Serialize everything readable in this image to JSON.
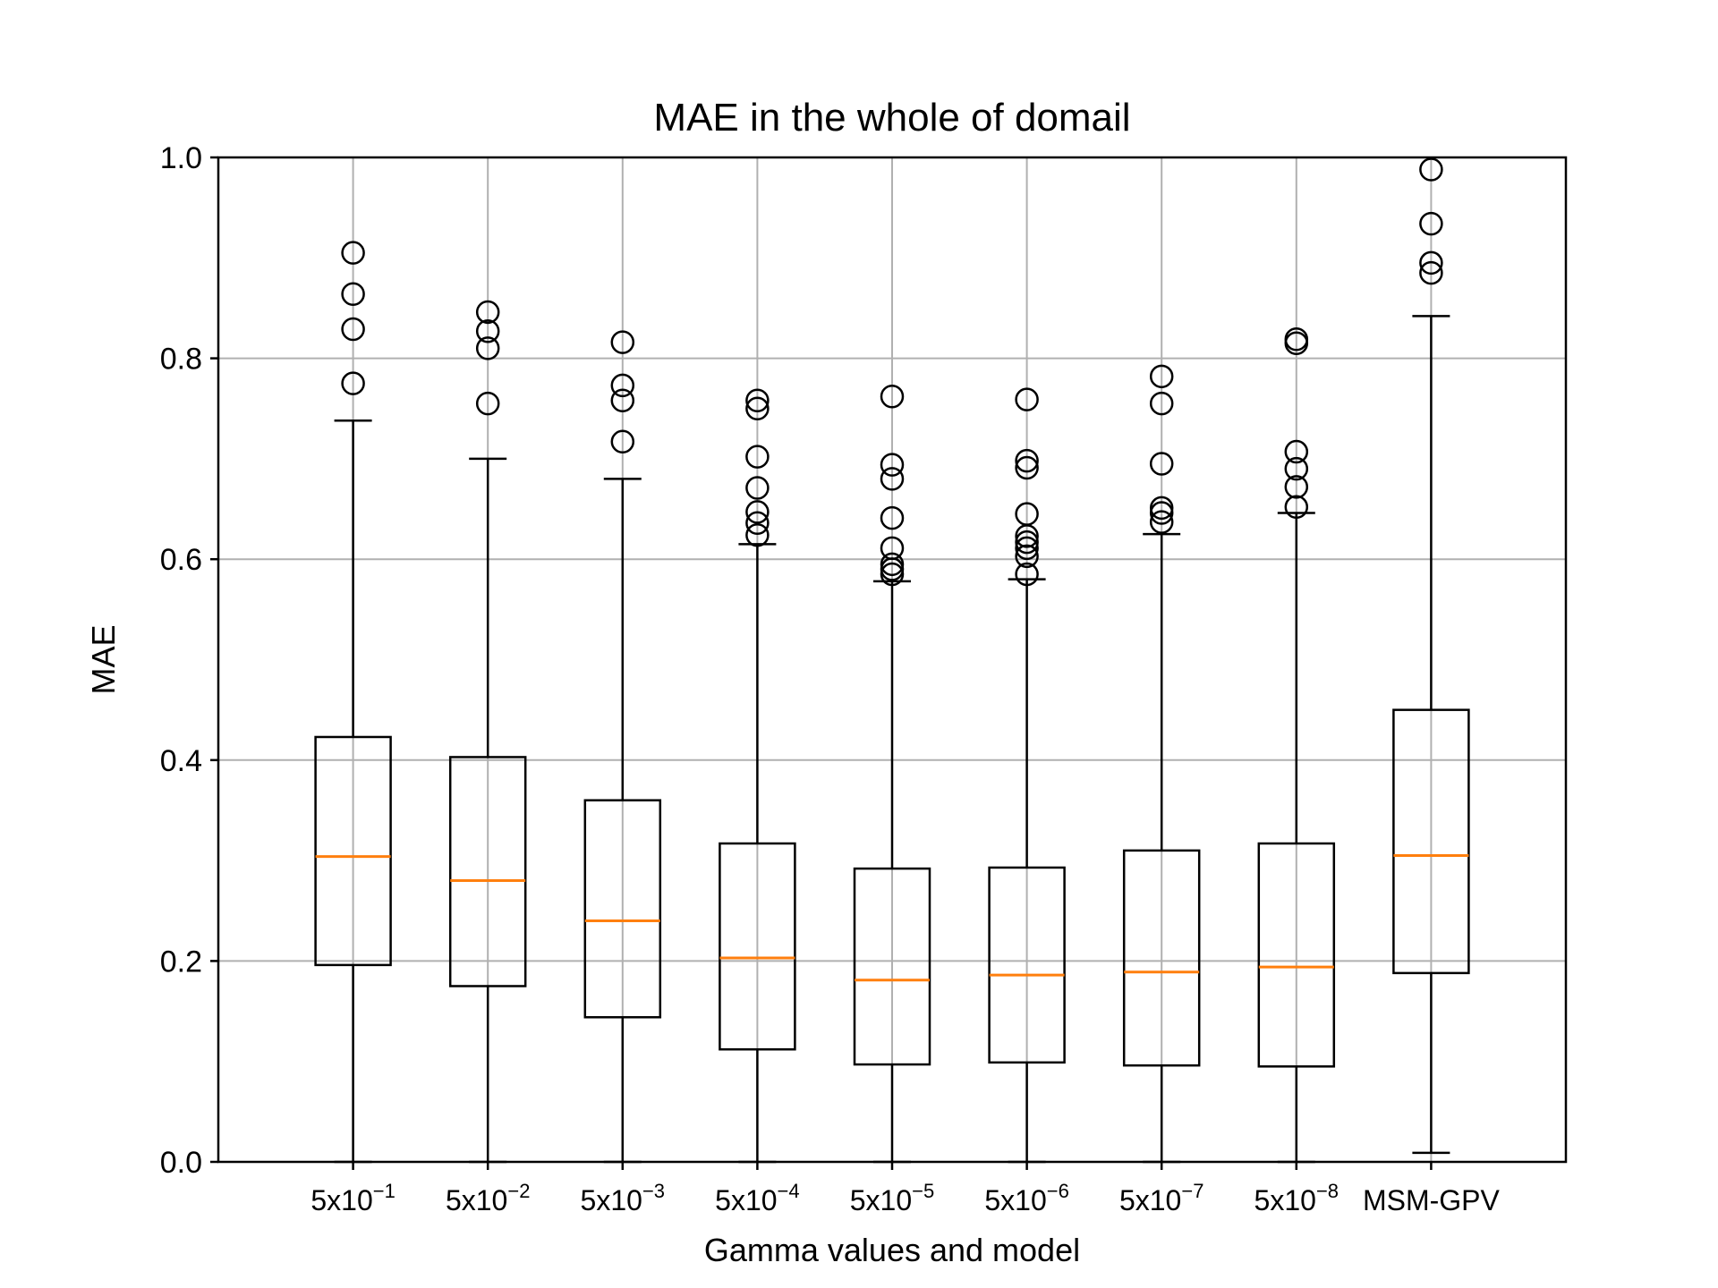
{
  "chart_data": {
    "type": "box",
    "title": "MAE in the whole of domail",
    "xlabel": "Gamma values and model",
    "ylabel": "MAE",
    "ylim": [
      0.0,
      1.0
    ],
    "yticks": [
      "0.0",
      "0.2",
      "0.4",
      "0.6",
      "0.8",
      "1.0"
    ],
    "grid": true,
    "colors": {
      "box": "#000000",
      "median": "#ff7f0e",
      "grid": "#b0b0b0"
    },
    "categories": [
      {
        "base": "5x10",
        "exp": "−1"
      },
      {
        "base": "5x10",
        "exp": "−2"
      },
      {
        "base": "5x10",
        "exp": "−3"
      },
      {
        "base": "5x10",
        "exp": "−4"
      },
      {
        "base": "5x10",
        "exp": "−5"
      },
      {
        "base": "5x10",
        "exp": "−6"
      },
      {
        "base": "5x10",
        "exp": "−7"
      },
      {
        "base": "5x10",
        "exp": "−8"
      },
      {
        "base": "MSM-GPV",
        "exp": ""
      }
    ],
    "boxes": [
      {
        "whisker_low": 0.0,
        "q1": 0.196,
        "median": 0.304,
        "q3": 0.423,
        "whisker_high": 0.738,
        "outliers": [
          0.775,
          0.829,
          0.864,
          0.905
        ]
      },
      {
        "whisker_low": 0.0,
        "q1": 0.175,
        "median": 0.28,
        "q3": 0.403,
        "whisker_high": 0.7,
        "outliers": [
          0.755,
          0.81,
          0.827,
          0.846
        ]
      },
      {
        "whisker_low": 0.0,
        "q1": 0.144,
        "median": 0.24,
        "q3": 0.36,
        "whisker_high": 0.68,
        "outliers": [
          0.717,
          0.758,
          0.773,
          0.816
        ]
      },
      {
        "whisker_low": 0.0,
        "q1": 0.112,
        "median": 0.203,
        "q3": 0.317,
        "whisker_high": 0.615,
        "outliers": [
          0.624,
          0.636,
          0.647,
          0.671,
          0.702,
          0.75,
          0.758
        ]
      },
      {
        "whisker_low": 0.0,
        "q1": 0.097,
        "median": 0.181,
        "q3": 0.292,
        "whisker_high": 0.578,
        "outliers": [
          0.585,
          0.59,
          0.595,
          0.611,
          0.641,
          0.68,
          0.694,
          0.762
        ]
      },
      {
        "whisker_low": 0.0,
        "q1": 0.099,
        "median": 0.186,
        "q3": 0.293,
        "whisker_high": 0.58,
        "outliers": [
          0.585,
          0.603,
          0.611,
          0.617,
          0.623,
          0.645,
          0.691,
          0.698,
          0.759
        ]
      },
      {
        "whisker_low": 0.0,
        "q1": 0.096,
        "median": 0.189,
        "q3": 0.31,
        "whisker_high": 0.625,
        "outliers": [
          0.637,
          0.646,
          0.651,
          0.695,
          0.755,
          0.782
        ]
      },
      {
        "whisker_low": 0.0,
        "q1": 0.095,
        "median": 0.194,
        "q3": 0.317,
        "whisker_high": 0.646,
        "outliers": [
          0.652,
          0.672,
          0.69,
          0.707,
          0.815,
          0.819
        ]
      },
      {
        "whisker_low": 0.009,
        "q1": 0.188,
        "median": 0.305,
        "q3": 0.45,
        "whisker_high": 0.842,
        "outliers": [
          0.885,
          0.895,
          0.934,
          0.988
        ]
      }
    ]
  }
}
